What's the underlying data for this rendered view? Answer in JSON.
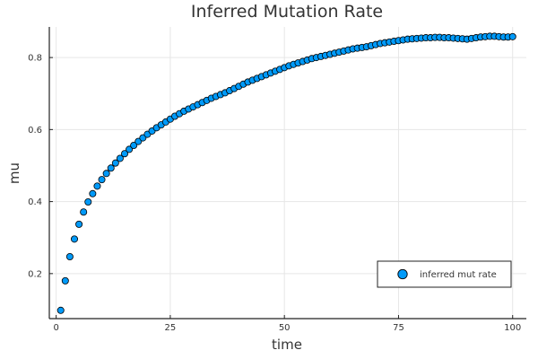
{
  "chart_data": {
    "type": "scatter",
    "title": "Inferred Mutation Rate",
    "xlabel": "time",
    "ylabel": "mu",
    "xlim": [
      -1.5,
      103
    ],
    "ylim": [
      0.075,
      0.885
    ],
    "xticks": [
      0,
      25,
      50,
      75,
      100
    ],
    "yticks": [
      0.2,
      0.4,
      0.6,
      0.8
    ],
    "grid": true,
    "legend_position": "bottom-right",
    "marker_color": "#009af9",
    "series": [
      {
        "name": "inferred mut rate",
        "x": [
          1,
          2,
          3,
          4,
          5,
          6,
          7,
          8,
          9,
          10,
          11,
          12,
          13,
          14,
          15,
          16,
          17,
          18,
          19,
          20,
          21,
          22,
          23,
          24,
          25,
          26,
          27,
          28,
          29,
          30,
          31,
          32,
          33,
          34,
          35,
          36,
          37,
          38,
          39,
          40,
          41,
          42,
          43,
          44,
          45,
          46,
          47,
          48,
          49,
          50,
          51,
          52,
          53,
          54,
          55,
          56,
          57,
          58,
          59,
          60,
          61,
          62,
          63,
          64,
          65,
          66,
          67,
          68,
          69,
          70,
          71,
          72,
          73,
          74,
          75,
          76,
          77,
          78,
          79,
          80,
          81,
          82,
          83,
          84,
          85,
          86,
          87,
          88,
          89,
          90,
          91,
          92,
          93,
          94,
          95,
          96,
          97,
          98,
          99,
          100
        ],
        "y": [
          0.098,
          0.18,
          0.247,
          0.296,
          0.337,
          0.371,
          0.399,
          0.422,
          0.443,
          0.461,
          0.478,
          0.493,
          0.507,
          0.52,
          0.533,
          0.545,
          0.556,
          0.567,
          0.577,
          0.587,
          0.596,
          0.605,
          0.613,
          0.621,
          0.629,
          0.637,
          0.644,
          0.651,
          0.657,
          0.663,
          0.669,
          0.675,
          0.681,
          0.687,
          0.692,
          0.697,
          0.702,
          0.708,
          0.714,
          0.72,
          0.726,
          0.732,
          0.737,
          0.742,
          0.747,
          0.752,
          0.757,
          0.762,
          0.767,
          0.772,
          0.777,
          0.781,
          0.785,
          0.789,
          0.793,
          0.797,
          0.8,
          0.803,
          0.806,
          0.809,
          0.812,
          0.815,
          0.818,
          0.821,
          0.824,
          0.826,
          0.828,
          0.83,
          0.833,
          0.836,
          0.839,
          0.841,
          0.843,
          0.845,
          0.847,
          0.849,
          0.851,
          0.852,
          0.853,
          0.854,
          0.855,
          0.855,
          0.856,
          0.856,
          0.855,
          0.855,
          0.854,
          0.853,
          0.852,
          0.851,
          0.853,
          0.855,
          0.857,
          0.858,
          0.859,
          0.859,
          0.858,
          0.857,
          0.857,
          0.858
        ]
      }
    ]
  }
}
